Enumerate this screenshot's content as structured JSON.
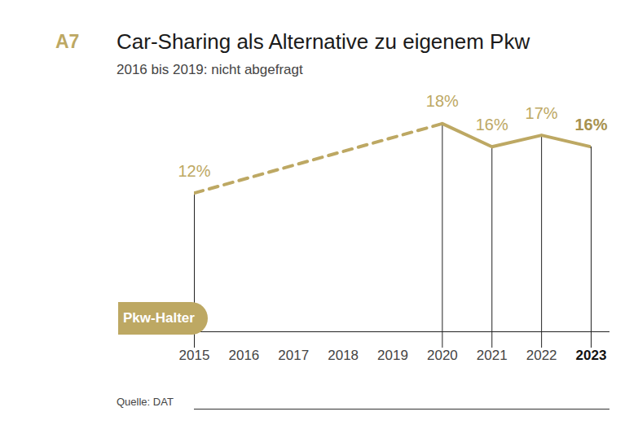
{
  "chart_data": {
    "type": "line",
    "label": "A7",
    "title": "Car-Sharing als Alternative zu eigenem Pkw",
    "subtitle": "2016 bis 2019: nicht abgefragt",
    "x": [
      2015,
      2016,
      2017,
      2018,
      2019,
      2020,
      2021,
      2022,
      2023
    ],
    "series": [
      {
        "name": "Pkw-Halter",
        "color": "#bda863",
        "values": [
          12,
          null,
          null,
          null,
          null,
          18,
          16,
          17,
          16
        ],
        "value_labels": [
          "12%",
          null,
          null,
          null,
          null,
          "18%",
          "16%",
          "17%",
          "16%"
        ]
      }
    ],
    "xlim": [
      2015,
      2023
    ],
    "xticks": [
      2015,
      2016,
      2017,
      2018,
      2019,
      2020,
      2021,
      2022,
      2023
    ],
    "ylim": [
      0,
      20
    ],
    "tick_labels": "x",
    "data_labels": true,
    "line_style": "solid",
    "legend": "bottom left",
    "source": "Quelle: DAT"
  }
}
